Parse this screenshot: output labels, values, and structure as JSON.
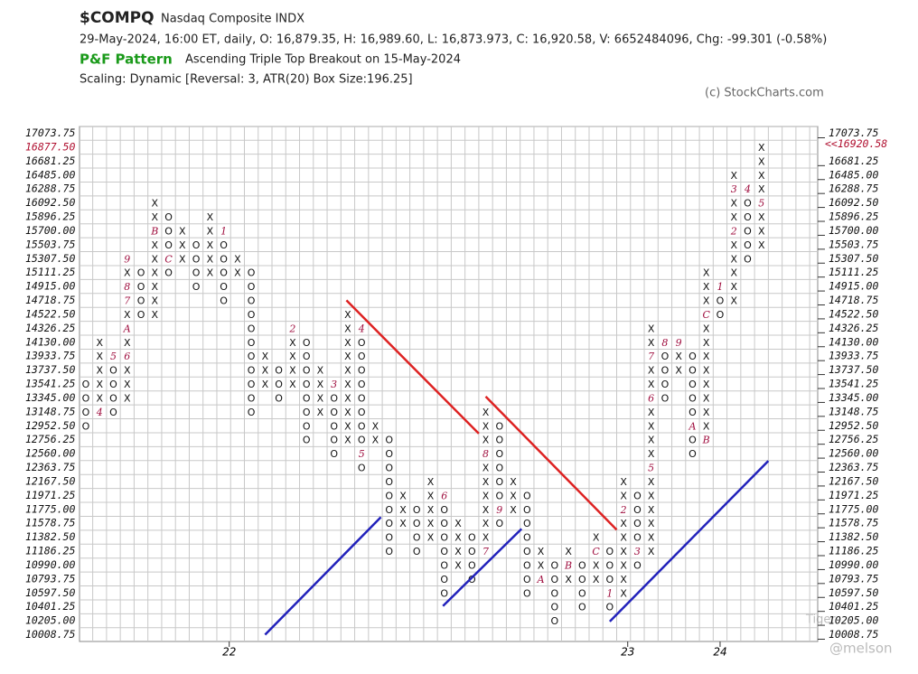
{
  "chart_data": {
    "type": "point-and-figure",
    "symbol": "$COMPQ",
    "name": "Nasdaq Composite INDX",
    "quote_line": "29-May-2024, 16:00 ET, daily, O: 16,879.35, H: 16,989.60, L: 16,873.973, C: 16,920.58, V: 6652484096, Chg: -99.301 (-0.58%)",
    "pattern_label": "P&F Pattern",
    "pattern": "Ascending Triple Top Breakout on 15-May-2024",
    "scaling": "Scaling: Dynamic [Reversal: 3, ATR(20) Box Size:196.25]",
    "credit": "(c) StockCharts.com",
    "watermark": "Tiger",
    "watermark_user": "@melson",
    "box_size": 196.25,
    "ylim": [
      10008.75,
      17073.75
    ],
    "yticks": [
      10008.75,
      {
        "value": 10205,
        "label": "10205.00"
      },
      10401.25,
      {
        "value": 10597.5,
        "label": "10597.50"
      },
      10793.75,
      {
        "value": 10990,
        "label": "10990.00"
      },
      11186.25,
      {
        "value": 11382.5,
        "label": "11382.50"
      },
      11578.75,
      {
        "value": 11775,
        "label": "11775.00"
      },
      11971.25,
      {
        "value": 12167.5,
        "label": "12167.50"
      },
      12363.75,
      {
        "value": 12560,
        "label": "12560.00"
      },
      12756.25,
      {
        "value": 12952.5,
        "label": "12952.50"
      },
      13148.75,
      {
        "value": 13345,
        "label": "13345.00"
      },
      13541.25,
      {
        "value": 13737.5,
        "label": "13737.50"
      },
      13933.75,
      {
        "value": 14130,
        "label": "14130.00"
      },
      14326.25,
      {
        "value": 14522.5,
        "label": "14522.50"
      },
      14718.75,
      {
        "value": 14915,
        "label": "14915.00"
      },
      15111.25,
      {
        "value": 15307.5,
        "label": "15307.50"
      },
      15503.75,
      {
        "value": 15700,
        "label": "15700.00"
      },
      15896.25,
      {
        "value": 16092.5,
        "label": "16092.50"
      },
      16288.75,
      {
        "value": 16485,
        "label": "16485.00"
      },
      16681.25,
      {
        "value": 16877.5,
        "label": "16877.50"
      },
      17073.75
    ],
    "current_box": {
      "value": 16877.5,
      "label": "16877.50"
    },
    "last_price": {
      "value": 16920.58,
      "label": "<<16920.58"
    },
    "xticks": [
      {
        "value": 10.4,
        "label": "22"
      },
      {
        "value": 39.3,
        "label": "23"
      },
      {
        "value": 46,
        "label": "24"
      }
    ],
    "columns": [
      {
        "type": "O",
        "low": 12952.5,
        "high": 13541.25,
        "labels": []
      },
      {
        "type": "X",
        "low": 13148.75,
        "high": 14130,
        "labels": [
          {
            "value": 13148.75,
            "label": "4"
          }
        ]
      },
      {
        "type": "O",
        "low": 13148.75,
        "high": 13933.75,
        "labels": [
          {
            "value": 13933.75,
            "label": "5"
          }
        ]
      },
      {
        "type": "X",
        "low": 13345,
        "high": 15307.5,
        "labels": [
          {
            "value": 13933.75,
            "label": "6"
          },
          {
            "value": 14326.25,
            "label": "A"
          },
          {
            "value": 14718.75,
            "label": "7"
          },
          {
            "value": 14915,
            "label": "8"
          },
          {
            "value": 15307.5,
            "label": "9"
          }
        ]
      },
      {
        "type": "O",
        "low": 14522.5,
        "high": 15111.25,
        "labels": []
      },
      {
        "type": "X",
        "low": 14522.5,
        "high": 16092.5,
        "labels": [
          {
            "value": 15700,
            "label": "B"
          }
        ]
      },
      {
        "type": "O",
        "low": 15111.25,
        "high": 15896.25,
        "labels": [
          {
            "value": 15307.5,
            "label": "C"
          }
        ]
      },
      {
        "type": "X",
        "low": 15307.5,
        "high": 15700,
        "labels": []
      },
      {
        "type": "O",
        "low": 14915,
        "high": 15503.75,
        "labels": []
      },
      {
        "type": "X",
        "low": 15111.25,
        "high": 15896.25,
        "labels": []
      },
      {
        "type": "O",
        "low": 14718.75,
        "high": 15700,
        "labels": [
          {
            "value": 15700,
            "label": "1"
          }
        ]
      },
      {
        "type": "X",
        "low": 15111.25,
        "high": 15307.5,
        "labels": []
      },
      {
        "type": "O",
        "low": 13148.75,
        "high": 15111.25,
        "labels": []
      },
      {
        "type": "X",
        "low": 13541.25,
        "high": 13933.75,
        "labels": []
      },
      {
        "type": "O",
        "low": 13345,
        "high": 13737.5,
        "labels": []
      },
      {
        "type": "X",
        "low": 13541.25,
        "high": 14326.25,
        "labels": [
          {
            "value": 14326.25,
            "label": "2"
          }
        ]
      },
      {
        "type": "O",
        "low": 12756.25,
        "high": 14130,
        "labels": []
      },
      {
        "type": "X",
        "low": 13148.75,
        "high": 13737.5,
        "labels": []
      },
      {
        "type": "O",
        "low": 12560,
        "high": 13541.25,
        "labels": [
          {
            "value": 13541.25,
            "label": "3"
          }
        ]
      },
      {
        "type": "X",
        "low": 12756.25,
        "high": 14522.5,
        "labels": []
      },
      {
        "type": "O",
        "low": 12363.75,
        "high": 14326.25,
        "labels": [
          {
            "value": 14326.25,
            "label": "4"
          },
          {
            "value": 12560,
            "label": "5"
          }
        ]
      },
      {
        "type": "X",
        "low": 12756.25,
        "high": 12952.5,
        "labels": []
      },
      {
        "type": "O",
        "low": 11186.25,
        "high": 12756.25,
        "labels": []
      },
      {
        "type": "X",
        "low": 11578.75,
        "high": 11971.25,
        "labels": []
      },
      {
        "type": "O",
        "low": 11186.25,
        "high": 11775,
        "labels": []
      },
      {
        "type": "X",
        "low": 11382.5,
        "high": 12167.5,
        "labels": []
      },
      {
        "type": "O",
        "low": 10597.5,
        "high": 11971.25,
        "labels": [
          {
            "value": 11971.25,
            "label": "6"
          }
        ]
      },
      {
        "type": "X",
        "low": 10990,
        "high": 11578.75,
        "labels": []
      },
      {
        "type": "O",
        "low": 10793.75,
        "high": 11382.5,
        "labels": []
      },
      {
        "type": "X",
        "low": 11186.25,
        "high": 13148.75,
        "labels": [
          {
            "value": 11186.25,
            "label": "7"
          },
          {
            "value": 12560,
            "label": "8"
          }
        ]
      },
      {
        "type": "O",
        "low": 11578.75,
        "high": 12952.5,
        "labels": [
          {
            "value": 11775,
            "label": "9"
          }
        ]
      },
      {
        "type": "X",
        "low": 11775,
        "high": 12167.5,
        "labels": []
      },
      {
        "type": "O",
        "low": 10597.5,
        "high": 11971.25,
        "labels": []
      },
      {
        "type": "X",
        "low": 10793.75,
        "high": 11186.25,
        "labels": [
          {
            "value": 10793.75,
            "label": "A"
          }
        ]
      },
      {
        "type": "O",
        "low": 10205,
        "high": 10990,
        "labels": []
      },
      {
        "type": "X",
        "low": 10793.75,
        "high": 11186.25,
        "labels": [
          {
            "value": 10990,
            "label": "B"
          }
        ]
      },
      {
        "type": "O",
        "low": 10401.25,
        "high": 10990,
        "labels": []
      },
      {
        "type": "X",
        "low": 10793.75,
        "high": 11382.5,
        "labels": [
          {
            "value": 11186.25,
            "label": "C"
          }
        ]
      },
      {
        "type": "O",
        "low": 10401.25,
        "high": 11186.25,
        "labels": [
          {
            "value": 10597.5,
            "label": "1"
          }
        ]
      },
      {
        "type": "X",
        "low": 10597.5,
        "high": 12167.5,
        "labels": [
          {
            "value": 11775,
            "label": "2"
          }
        ]
      },
      {
        "type": "O",
        "low": 10990,
        "high": 11971.25,
        "labels": [
          {
            "value": 11186.25,
            "label": "3"
          }
        ]
      },
      {
        "type": "X",
        "low": 11186.25,
        "high": 14326.25,
        "labels": [
          {
            "value": 12363.75,
            "label": "5"
          },
          {
            "value": 13345,
            "label": "6"
          },
          {
            "value": 13933.75,
            "label": "7"
          }
        ]
      },
      {
        "type": "O",
        "low": 13345,
        "high": 14130,
        "labels": [
          {
            "value": 14130,
            "label": "8"
          }
        ]
      },
      {
        "type": "X",
        "low": 13737.5,
        "high": 14130,
        "labels": [
          {
            "value": 14130,
            "label": "9"
          }
        ]
      },
      {
        "type": "O",
        "low": 12560,
        "high": 13933.75,
        "labels": [
          {
            "value": 12952.5,
            "label": "A"
          }
        ]
      },
      {
        "type": "X",
        "low": 12756.25,
        "high": 15111.25,
        "labels": [
          {
            "value": 12756.25,
            "label": "B"
          },
          {
            "value": 14522.5,
            "label": "C"
          }
        ]
      },
      {
        "type": "O",
        "low": 14522.5,
        "high": 14915,
        "labels": [
          {
            "value": 14915,
            "label": "1"
          }
        ]
      },
      {
        "type": "X",
        "low": 14718.75,
        "high": 16485,
        "labels": [
          {
            "value": 15700,
            "label": "2"
          },
          {
            "value": 16288.75,
            "label": "3"
          }
        ]
      },
      {
        "type": "O",
        "low": 15307.5,
        "high": 16288.75,
        "labels": [
          {
            "value": 16288.75,
            "label": "4"
          }
        ]
      },
      {
        "type": "X",
        "low": 15503.75,
        "high": 16877.5,
        "labels": [
          {
            "value": 16092.5,
            "label": "5"
          }
        ]
      }
    ],
    "trendlines": [
      {
        "color": "#dd2222",
        "x": [
          18.9,
          28.5
        ],
        "values": [
          14720,
          12842
        ]
      },
      {
        "color": "#dd2222",
        "x": [
          29.0,
          38.5
        ],
        "values": [
          13365,
          11487
        ]
      },
      {
        "color": "#2222bb",
        "x": [
          13.0,
          21.4
        ],
        "values": [
          10008,
          11665
        ]
      },
      {
        "color": "#2222bb",
        "x": [
          25.9,
          31.6
        ],
        "values": [
          10413,
          11500
        ]
      },
      {
        "color": "#2222bb",
        "x": [
          38.0,
          49.5
        ],
        "values": [
          10195,
          12458
        ]
      }
    ],
    "grid": true
  }
}
